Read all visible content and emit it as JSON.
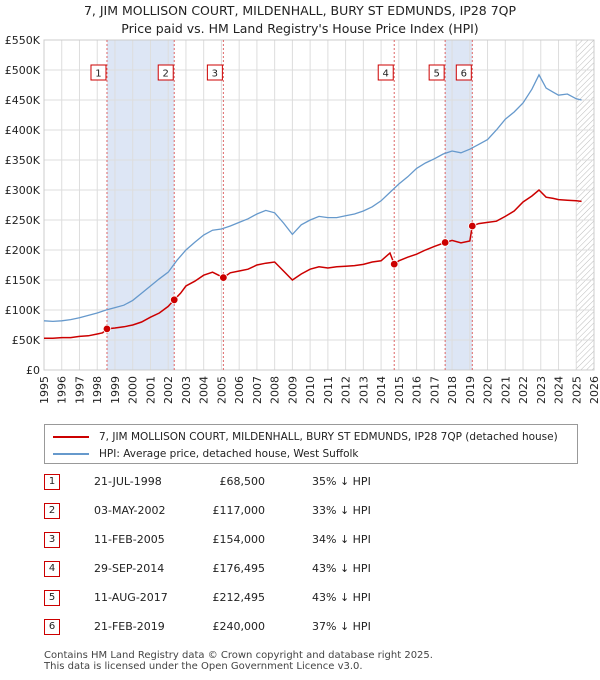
{
  "chart_data": {
    "type": "line",
    "title": "7, JIM MOLLISON COURT, MILDENHALL, BURY ST EDMUNDS, IP28 7QP",
    "subtitle": "Price paid vs. HM Land Registry's House Price Index (HPI)",
    "xlim": [
      1995,
      2026
    ],
    "ylim": [
      0,
      550000
    ],
    "y_ticks": [
      0,
      50000,
      100000,
      150000,
      200000,
      250000,
      300000,
      350000,
      400000,
      450000,
      500000,
      550000
    ],
    "y_tick_labels": [
      "£0",
      "£50K",
      "£100K",
      "£150K",
      "£200K",
      "£250K",
      "£300K",
      "£350K",
      "£400K",
      "£450K",
      "£500K",
      "£550K"
    ],
    "x_ticks": [
      "1995",
      "1996",
      "1997",
      "1998",
      "1999",
      "2000",
      "2001",
      "2002",
      "2003",
      "2004",
      "2005",
      "2006",
      "2007",
      "2008",
      "2009",
      "2010",
      "2011",
      "2012",
      "2013",
      "2014",
      "2015",
      "2016",
      "2017",
      "2018",
      "2019",
      "2020",
      "2021",
      "2022",
      "2023",
      "2024",
      "2025",
      "2026"
    ],
    "grid": true,
    "legend_position": "below",
    "colors": {
      "property": "#cc0000",
      "hpi": "#6699cc",
      "shade": "#dde6f5",
      "vline": "#dd6666"
    },
    "series": [
      {
        "name": "7, JIM MOLLISON COURT, MILDENHALL, BURY ST EDMUNDS, IP28 7QP (detached house)",
        "x": [
          1995.0,
          1995.5,
          1996.0,
          1996.5,
          1997.0,
          1997.5,
          1998.0,
          1998.3,
          1998.55,
          1999.0,
          1999.5,
          2000.0,
          2000.5,
          2001.0,
          2001.5,
          2002.0,
          2002.34,
          2002.7,
          2003.0,
          2003.5,
          2004.0,
          2004.5,
          2005.11,
          2005.5,
          2006.0,
          2006.5,
          2007.0,
          2007.5,
          2008.0,
          2008.5,
          2009.0,
          2009.5,
          2010.0,
          2010.5,
          2011.0,
          2011.5,
          2012.0,
          2012.5,
          2013.0,
          2013.5,
          2014.0,
          2014.5,
          2014.74,
          2015.0,
          2015.5,
          2016.0,
          2016.5,
          2017.0,
          2017.61,
          2018.0,
          2018.5,
          2019.0,
          2019.14,
          2019.5,
          2020.0,
          2020.5,
          2021.0,
          2021.5,
          2022.0,
          2022.5,
          2022.9,
          2023.3,
          2023.7,
          2024.0,
          2024.5,
          2025.0,
          2025.3
        ],
        "y": [
          53000,
          53000,
          54000,
          54000,
          56000,
          57000,
          60000,
          62000,
          68500,
          70000,
          72000,
          75000,
          80000,
          88000,
          95000,
          106000,
          117000,
          128000,
          140000,
          148000,
          158000,
          163000,
          154000,
          162000,
          165000,
          168000,
          175000,
          178000,
          180000,
          165000,
          150000,
          160000,
          168000,
          172000,
          170000,
          172000,
          173000,
          174000,
          176000,
          180000,
          182000,
          195000,
          176495,
          182000,
          188000,
          193000,
          200000,
          206000,
          212495,
          216000,
          212000,
          215000,
          240000,
          244000,
          246000,
          248000,
          256000,
          265000,
          280000,
          290000,
          300000,
          288000,
          286000,
          284000,
          283000,
          282000,
          281000
        ]
      },
      {
        "name": "HPI: Average price, detached house, West Suffolk",
        "x": [
          1995.0,
          1995.5,
          1996.0,
          1996.5,
          1997.0,
          1997.5,
          1998.0,
          1998.5,
          1999.0,
          1999.5,
          2000.0,
          2000.5,
          2001.0,
          2001.5,
          2002.0,
          2002.5,
          2003.0,
          2003.5,
          2004.0,
          2004.5,
          2005.0,
          2005.5,
          2006.0,
          2006.5,
          2007.0,
          2007.5,
          2008.0,
          2008.5,
          2009.0,
          2009.5,
          2010.0,
          2010.5,
          2011.0,
          2011.5,
          2012.0,
          2012.5,
          2013.0,
          2013.5,
          2014.0,
          2014.5,
          2015.0,
          2015.5,
          2016.0,
          2016.5,
          2017.0,
          2017.5,
          2018.0,
          2018.5,
          2019.0,
          2019.5,
          2020.0,
          2020.5,
          2021.0,
          2021.5,
          2022.0,
          2022.5,
          2022.9,
          2023.3,
          2023.7,
          2024.0,
          2024.5,
          2025.0,
          2025.3
        ],
        "y": [
          82000,
          81000,
          82000,
          84000,
          87000,
          91000,
          95000,
          100000,
          104000,
          108000,
          116000,
          128000,
          140000,
          152000,
          163000,
          183000,
          200000,
          213000,
          225000,
          233000,
          235000,
          240000,
          246000,
          252000,
          260000,
          266000,
          262000,
          245000,
          226000,
          242000,
          250000,
          256000,
          254000,
          254000,
          257000,
          260000,
          265000,
          272000,
          282000,
          296000,
          310000,
          322000,
          336000,
          345000,
          352000,
          360000,
          365000,
          362000,
          368000,
          376000,
          384000,
          400000,
          418000,
          430000,
          445000,
          468000,
          492000,
          470000,
          463000,
          458000,
          460000,
          452000,
          450000
        ]
      }
    ],
    "sales": [
      {
        "num": "1",
        "x": 1998.55,
        "date": "21-JUL-1998",
        "price": "£68,500",
        "hpi": "35% ↓ HPI",
        "value": 68500
      },
      {
        "num": "2",
        "x": 2002.34,
        "date": "03-MAY-2002",
        "price": "£117,000",
        "hpi": "33% ↓ HPI",
        "value": 117000
      },
      {
        "num": "3",
        "x": 2005.11,
        "date": "11-FEB-2005",
        "price": "£154,000",
        "hpi": "34% ↓ HPI",
        "value": 154000
      },
      {
        "num": "4",
        "x": 2014.74,
        "date": "29-SEP-2014",
        "price": "£176,495",
        "hpi": "43% ↓ HPI",
        "value": 176495
      },
      {
        "num": "5",
        "x": 2017.61,
        "date": "11-AUG-2017",
        "price": "£212,495",
        "hpi": "43% ↓ HPI",
        "value": 212495
      },
      {
        "num": "6",
        "x": 2019.14,
        "date": "21-FEB-2019",
        "price": "£240,000",
        "hpi": "37% ↓ HPI",
        "value": 240000
      }
    ],
    "shaded_spans": [
      [
        1998.55,
        2002.34
      ],
      [
        2017.61,
        2019.14
      ]
    ],
    "hatched_from": 2025.0
  },
  "footer": {
    "line1": "Contains HM Land Registry data © Crown copyright and database right 2025.",
    "line2": "This data is licensed under the Open Government Licence v3.0."
  }
}
